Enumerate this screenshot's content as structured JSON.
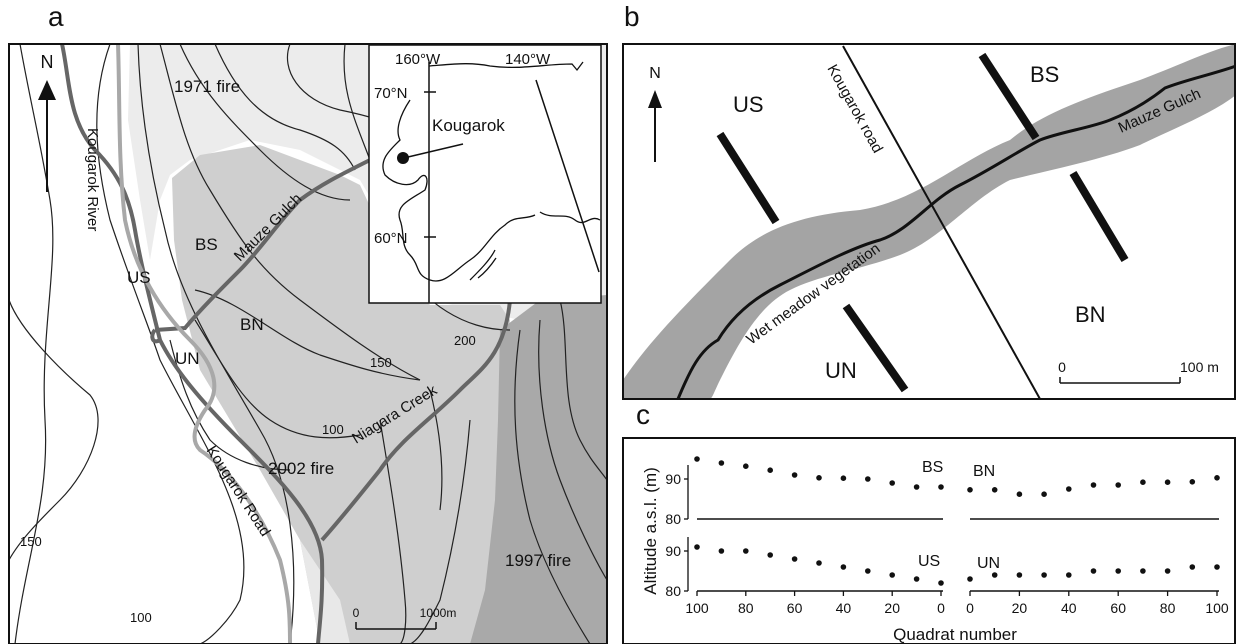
{
  "panel_a": {
    "letter": "a",
    "north": "N",
    "fire_1971": "1971 fire",
    "fire_2002": "2002 fire",
    "fire_1997": "1997 fire",
    "mauze_gulch": "Mauze Gulch",
    "niagara_creek": "Niagara Creek",
    "kougarok_river": "Kougarok River",
    "kougarok_road": "Kougarok Road",
    "sites": {
      "us": "US",
      "bs": "BS",
      "un": "UN",
      "bn": "BN"
    },
    "contours": {
      "c150a": "150",
      "c200": "200",
      "c100a": "100",
      "c150b": "150",
      "c100b": "100"
    },
    "scale_start": "0",
    "scale_end": "1000m",
    "inset": {
      "lon1": "160°W",
      "lon2": "140°W",
      "lat1": "70°N",
      "lat2": "60°N",
      "place": "Kougarok"
    },
    "colors": {
      "fire1971": "#ececec",
      "fire2002": "#cfcfcf",
      "fire1997": "#a9a9a9",
      "road": "#a8a8a8",
      "river": "#666666"
    }
  },
  "panel_b": {
    "letter": "b",
    "north": "N",
    "road": "Kougarok road",
    "creek": "Mauze Gulch",
    "vegetation": "Wet meadow vegetation",
    "sites": {
      "us": "US",
      "bs": "BS",
      "un": "UN",
      "bn": "BN"
    },
    "scale_start": "0",
    "scale_end": "100 m",
    "colors": {
      "meadow": "#a4a4a4"
    }
  },
  "panel_c": {
    "letter": "c",
    "ylabel": "Altitude a.s.l. (m)",
    "xlabel": "Quadrat number",
    "sublabels": {
      "bs": "BS",
      "bn": "BN",
      "us": "US",
      "un": "UN"
    },
    "xticks_left": [
      "100",
      "80",
      "60",
      "40",
      "20",
      "0"
    ],
    "xticks_right": [
      "0",
      "20",
      "40",
      "60",
      "80",
      "100"
    ],
    "yticks": [
      "90",
      "80"
    ]
  },
  "chart_data": {
    "type": "scatter",
    "xlabel": "Quadrat number",
    "ylabel": "Altitude a.s.l. (m)",
    "ylim": [
      80,
      96
    ],
    "series": [
      {
        "name": "BS",
        "x": [
          100,
          90,
          80,
          70,
          60,
          50,
          40,
          30,
          20,
          10,
          0
        ],
        "values": [
          95,
          94,
          93.2,
          92.2,
          91,
          90.3,
          90.2,
          90,
          89,
          88,
          88
        ]
      },
      {
        "name": "BN",
        "x": [
          0,
          10,
          20,
          30,
          40,
          50,
          60,
          70,
          80,
          90,
          100
        ],
        "values": [
          87.3,
          87.3,
          86.2,
          86.2,
          87.5,
          88.5,
          88.5,
          89.2,
          89.2,
          89.3,
          90.3
        ]
      },
      {
        "name": "US",
        "x": [
          100,
          90,
          80,
          70,
          60,
          50,
          40,
          30,
          20,
          10,
          0
        ],
        "values": [
          91,
          90,
          90,
          89,
          88,
          87,
          86,
          85,
          84,
          83,
          82
        ]
      },
      {
        "name": "UN",
        "x": [
          0,
          10,
          20,
          30,
          40,
          50,
          60,
          70,
          80,
          90,
          100
        ],
        "values": [
          83,
          84,
          84,
          84,
          84,
          85,
          85,
          85,
          85,
          86,
          86
        ]
      }
    ]
  }
}
